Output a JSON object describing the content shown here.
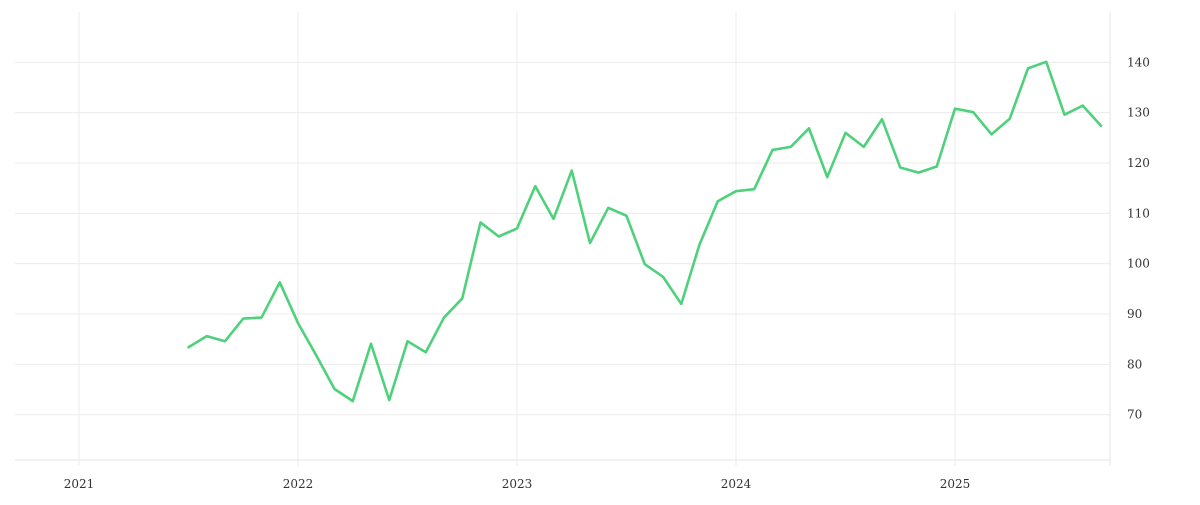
{
  "chart_data": {
    "type": "line",
    "title": "",
    "xlabel": "",
    "ylabel": "",
    "x_tick_labels": [
      "2021",
      "2022",
      "2023",
      "2024",
      "2025"
    ],
    "y_tick_labels": [
      "70",
      "80",
      "90",
      "100",
      "110",
      "120",
      "130",
      "140"
    ],
    "x_range": [
      "2020-09",
      "2025-09"
    ],
    "ylim": [
      61,
      150
    ],
    "y_axis_position": "right",
    "grid": true,
    "series": [
      {
        "color": "#4fd17b",
        "x": [
          "2021-07",
          "2021-08",
          "2021-09",
          "2021-10",
          "2021-11",
          "2021-12",
          "2022-01",
          "2022-02",
          "2022-03",
          "2022-04",
          "2022-05",
          "2022-06",
          "2022-07",
          "2022-08",
          "2022-09",
          "2022-10",
          "2022-11",
          "2022-12",
          "2023-01",
          "2023-02",
          "2023-03",
          "2023-04",
          "2023-05",
          "2023-06",
          "2023-07",
          "2023-08",
          "2023-09",
          "2023-10",
          "2023-11",
          "2023-12",
          "2024-01",
          "2024-02",
          "2024-03",
          "2024-04",
          "2024-05",
          "2024-06",
          "2024-07",
          "2024-08",
          "2024-09",
          "2024-10",
          "2024-11",
          "2024-12",
          "2025-01",
          "2025-02",
          "2025-03",
          "2025-04",
          "2025-05",
          "2025-06",
          "2025-07",
          "2025-08",
          "2025-09"
        ],
        "values": [
          83.4,
          85.6,
          84.6,
          89.1,
          89.3,
          96.3,
          88.2,
          81.8,
          75.1,
          72.7,
          84.1,
          72.9,
          84.6,
          82.4,
          89.3,
          93.1,
          108.2,
          105.4,
          107.0,
          115.4,
          108.9,
          118.5,
          104.1,
          111.1,
          109.5,
          99.9,
          97.4,
          92.0,
          103.8,
          112.4,
          114.4,
          114.8,
          122.6,
          123.2,
          126.9,
          117.2,
          126.0,
          123.2,
          128.7,
          119.1,
          118.1,
          119.3,
          130.8,
          130.1,
          125.7,
          128.8,
          138.8,
          140.1,
          129.6,
          131.4,
          127.4
        ]
      }
    ]
  }
}
